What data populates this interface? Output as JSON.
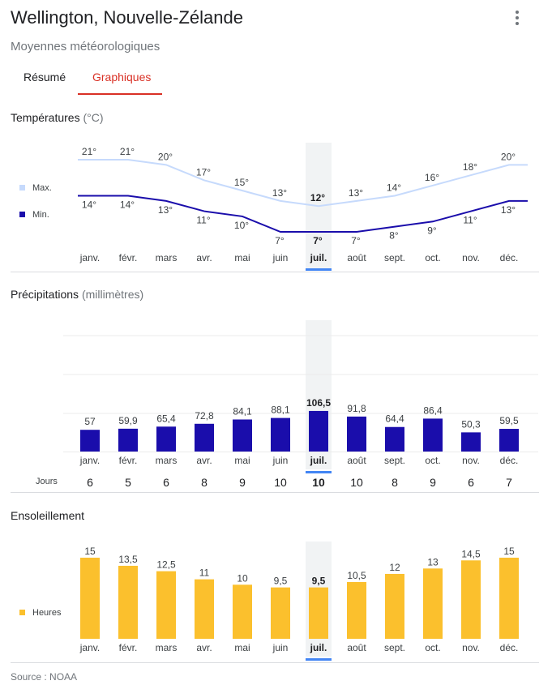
{
  "header": {
    "title": "Wellington, Nouvelle-Zélande",
    "subtitle": "Moyennes météorologiques"
  },
  "tabs": [
    {
      "label": "Résumé",
      "active": false
    },
    {
      "label": "Graphiques",
      "active": true
    }
  ],
  "selected_month_index": 6,
  "colors": {
    "max_line": "#c6dafc",
    "min_line": "#1a0dab",
    "precip_bar": "#1a0dab",
    "sun_bar": "#fbc02d",
    "accent_tab": "#d93025",
    "selected_marker": "#4285f4",
    "highlight_band": "#f1f3f4"
  },
  "temperature": {
    "title": "Températures",
    "unit": "(°C)",
    "legend_max": "Max.",
    "legend_min": "Min."
  },
  "precipitation": {
    "title": "Précipitations",
    "unit": "(millimètres)",
    "days_label": "Jours"
  },
  "sunshine": {
    "title": "Ensoleillement",
    "legend": "Heures"
  },
  "source": "Source : NOAA",
  "chart_data": [
    {
      "type": "line",
      "title": "Températures (°C)",
      "categories": [
        "janv.",
        "févr.",
        "mars",
        "avr.",
        "mai",
        "juin",
        "juil.",
        "août",
        "sept.",
        "oct.",
        "nov.",
        "déc."
      ],
      "series": [
        {
          "name": "Max.",
          "values": [
            21,
            21,
            20,
            17,
            15,
            13,
            12,
            13,
            14,
            16,
            18,
            20
          ],
          "labels": [
            "21°",
            "21°",
            "20°",
            "17°",
            "15°",
            "13°",
            "12°",
            "13°",
            "14°",
            "16°",
            "18°",
            "20°"
          ]
        },
        {
          "name": "Min.",
          "values": [
            14,
            14,
            13,
            11,
            10,
            7,
            7,
            7,
            8,
            9,
            11,
            13
          ],
          "labels": [
            "14°",
            "14°",
            "13°",
            "11°",
            "10°",
            "7°",
            "7°",
            "7°",
            "8°",
            "9°",
            "11°",
            "13°"
          ]
        }
      ],
      "ylim": [
        7,
        21
      ],
      "legend": "left"
    },
    {
      "type": "bar",
      "title": "Précipitations (millimètres)",
      "categories": [
        "janv.",
        "févr.",
        "mars",
        "avr.",
        "mai",
        "juin",
        "juil.",
        "août",
        "sept.",
        "oct.",
        "nov.",
        "déc."
      ],
      "values": [
        57,
        59.9,
        65.4,
        72.8,
        84.1,
        88.1,
        106.5,
        91.8,
        64.4,
        86.4,
        50.3,
        59.5
      ],
      "labels": [
        "57",
        "59,9",
        "65,4",
        "72,8",
        "84,1",
        "88,1",
        "106,5",
        "91,8",
        "64,4",
        "86,4",
        "50,3",
        "59,5"
      ],
      "days": [
        "6",
        "5",
        "6",
        "8",
        "9",
        "10",
        "10",
        "10",
        "8",
        "9",
        "6",
        "7"
      ],
      "ylim": [
        0,
        300
      ],
      "grid": true
    },
    {
      "type": "bar",
      "title": "Ensoleillement",
      "categories": [
        "janv.",
        "févr.",
        "mars",
        "avr.",
        "mai",
        "juin",
        "juil.",
        "août",
        "sept.",
        "oct.",
        "nov.",
        "déc."
      ],
      "values": [
        15,
        13.5,
        12.5,
        11,
        10,
        9.5,
        9.5,
        10.5,
        12,
        13,
        14.5,
        15
      ],
      "labels": [
        "15",
        "13,5",
        "12,5",
        "11",
        "10",
        "9,5",
        "9,5",
        "10,5",
        "12",
        "13",
        "14,5",
        "15"
      ],
      "ylim": [
        0,
        15
      ],
      "legend": "left"
    }
  ]
}
